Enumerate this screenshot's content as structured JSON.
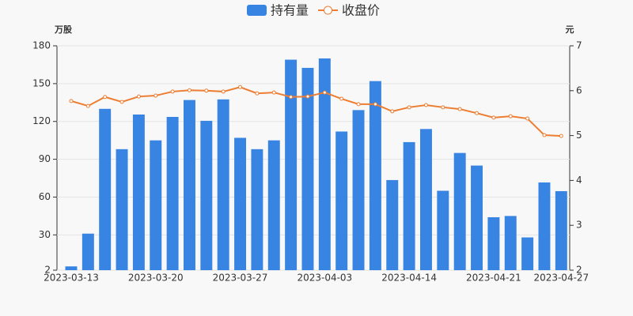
{
  "chart_data": {
    "type": "bar",
    "categories": [
      "2023-03-13",
      null,
      null,
      null,
      null,
      "2023-03-20",
      null,
      null,
      null,
      null,
      "2023-03-27",
      null,
      null,
      null,
      null,
      "2023-04-03",
      null,
      null,
      null,
      null,
      "2023-04-14",
      null,
      null,
      null,
      null,
      "2023-04-21",
      null,
      null,
      null,
      "2023-04-27"
    ],
    "series": [
      {
        "name": "持有量",
        "type": "bar",
        "color": "#3784e3",
        "values": [
          5,
          31,
          130,
          98,
          125.5,
          105,
          123.6,
          137,
          120.5,
          137.5,
          107,
          98,
          105,
          169,
          162.5,
          170,
          112,
          129,
          152,
          73.5,
          103.6,
          114,
          65,
          95,
          85,
          44,
          45,
          28,
          71.6,
          64.7
        ]
      },
      {
        "name": "收盘价",
        "type": "line",
        "axis": "y2",
        "color": "#ed7d31",
        "values": [
          5.77,
          5.66,
          5.86,
          5.75,
          5.87,
          5.89,
          5.98,
          6.01,
          6.0,
          5.98,
          6.08,
          5.94,
          5.96,
          5.86,
          5.87,
          5.96,
          5.82,
          5.7,
          5.7,
          5.54,
          5.63,
          5.68,
          5.63,
          5.59,
          5.5,
          5.4,
          5.43,
          5.38,
          5.01,
          4.99
        ]
      }
    ],
    "ylabel": "万股",
    "y2label": "元",
    "ylim": [
      2,
      180
    ],
    "yticks": [
      2,
      30,
      60,
      90,
      120,
      150,
      180
    ],
    "y2lim": [
      2,
      7
    ],
    "y2ticks": [
      2,
      3,
      4,
      5,
      6,
      7
    ],
    "grid": true
  }
}
